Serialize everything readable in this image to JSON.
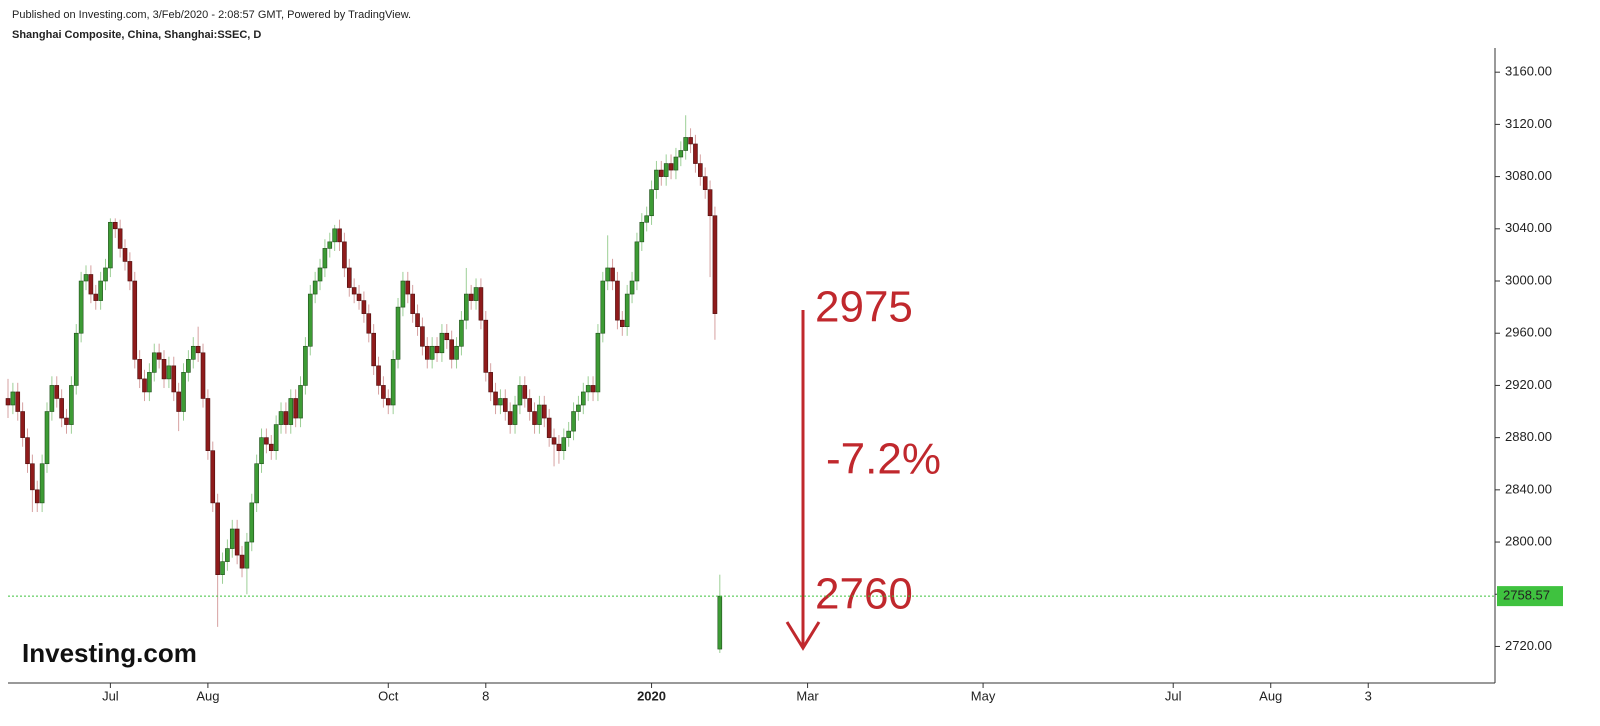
{
  "chart_data": {
    "type": "candlestick",
    "published": "Published on Investing.com, 3/Feb/2020 - 2:08:57 GMT, Powered by TradingView.",
    "title": "Shanghai Composite, China, Shanghai:SSEC, D",
    "logo": "Investing.com",
    "annotations": [
      "2975",
      "-7.2%",
      "2760"
    ],
    "up_color": "#3d9b35",
    "down_color": "#8e1b1b",
    "last_price_color": "#3fc23f",
    "xlim": [
      0,
      305
    ],
    "ylim": [
      2692,
      3177
    ],
    "xticks": [
      {
        "value": 21,
        "label": "Jul"
      },
      {
        "value": 41,
        "label": "Aug"
      },
      {
        "value": 78,
        "label": "Oct"
      },
      {
        "value": 98,
        "label": "8"
      },
      {
        "value": 132,
        "label": "2020"
      },
      {
        "value": 164,
        "label": "Mar"
      },
      {
        "value": 200,
        "label": "May"
      },
      {
        "value": 239,
        "label": "Jul"
      },
      {
        "value": 259,
        "label": "Aug"
      },
      {
        "value": 279,
        "label": "3"
      }
    ],
    "yticks": [
      {
        "value": 2720,
        "label": "2720.00"
      },
      {
        "value": 2760,
        "label": "2760.00"
      },
      {
        "value": 2800,
        "label": "2800.00"
      },
      {
        "value": 2840,
        "label": "2840.00"
      },
      {
        "value": 2880,
        "label": "2880.00"
      },
      {
        "value": 2920,
        "label": "2920.00"
      },
      {
        "value": 2960,
        "label": "2960.00"
      },
      {
        "value": 3000,
        "label": "3000.00"
      },
      {
        "value": 3040,
        "label": "3040.00"
      },
      {
        "value": 3080,
        "label": "3080.00"
      },
      {
        "value": 3120,
        "label": "3120.00"
      },
      {
        "value": 3160,
        "label": "3160.00"
      }
    ],
    "series": [
      {
        "name": "SSEC",
        "x": [
          0,
          1,
          2,
          3,
          4,
          5,
          6,
          7,
          8,
          9,
          10,
          11,
          12,
          13,
          14,
          15,
          16,
          17,
          18,
          19,
          20,
          21,
          22,
          23,
          24,
          25,
          26,
          27,
          28,
          29,
          30,
          31,
          32,
          33,
          34,
          35,
          36,
          37,
          38,
          39,
          40,
          41,
          42,
          43,
          44,
          45,
          46,
          47,
          48,
          49,
          50,
          51,
          52,
          53,
          54,
          55,
          56,
          57,
          58,
          59,
          60,
          61,
          62,
          63,
          64,
          65,
          66,
          67,
          68,
          69,
          70,
          71,
          72,
          73,
          74,
          75,
          76,
          77,
          78,
          79,
          80,
          81,
          82,
          83,
          84,
          85,
          86,
          87,
          88,
          89,
          90,
          91,
          92,
          93,
          94,
          95,
          96,
          97,
          98,
          99,
          100,
          101,
          102,
          103,
          104,
          105,
          106,
          107,
          108,
          109,
          110,
          111,
          112,
          113,
          114,
          115,
          116,
          117,
          118,
          119,
          120,
          121,
          122,
          123,
          124,
          125,
          126,
          127,
          128,
          129,
          130,
          131,
          132,
          133,
          134,
          135,
          136,
          137,
          138,
          139,
          140,
          141,
          142,
          143,
          144,
          145,
          146
        ],
        "ohlc": [
          [
            2910,
            2925,
            2895,
            2905
          ],
          [
            2905,
            2922,
            2898,
            2915
          ],
          [
            2915,
            2922,
            2893,
            2900
          ],
          [
            2900,
            2907,
            2873,
            2880
          ],
          [
            2880,
            2887,
            2853,
            2860
          ],
          [
            2860,
            2867,
            2823,
            2840
          ],
          [
            2840,
            2847,
            2823,
            2830
          ],
          [
            2830,
            2867,
            2823,
            2860
          ],
          [
            2860,
            2907,
            2853,
            2900
          ],
          [
            2900,
            2927,
            2893,
            2920
          ],
          [
            2920,
            2927,
            2903,
            2910
          ],
          [
            2910,
            2917,
            2888,
            2895
          ],
          [
            2895,
            2902,
            2883,
            2890
          ],
          [
            2890,
            2927,
            2883,
            2920
          ],
          [
            2920,
            2967,
            2913,
            2960
          ],
          [
            2960,
            3007,
            2953,
            3000
          ],
          [
            3000,
            3012,
            2993,
            3005
          ],
          [
            3005,
            3012,
            2983,
            2990
          ],
          [
            2990,
            2997,
            2978,
            2985
          ],
          [
            2985,
            3007,
            2978,
            3000
          ],
          [
            3000,
            3017,
            2993,
            3010
          ],
          [
            3010,
            3048,
            3003,
            3045
          ],
          [
            3045,
            3048,
            3033,
            3040
          ],
          [
            3040,
            3047,
            3018,
            3025
          ],
          [
            3025,
            3032,
            3008,
            3015
          ],
          [
            3015,
            3022,
            2993,
            3000
          ],
          [
            3000,
            3007,
            2933,
            2940
          ],
          [
            2940,
            2947,
            2918,
            2925
          ],
          [
            2925,
            2932,
            2908,
            2915
          ],
          [
            2915,
            2937,
            2908,
            2930
          ],
          [
            2930,
            2952,
            2923,
            2945
          ],
          [
            2945,
            2952,
            2933,
            2940
          ],
          [
            2940,
            2947,
            2918,
            2925
          ],
          [
            2925,
            2942,
            2918,
            2935
          ],
          [
            2935,
            2942,
            2908,
            2915
          ],
          [
            2915,
            2922,
            2885,
            2900
          ],
          [
            2900,
            2937,
            2893,
            2930
          ],
          [
            2930,
            2947,
            2923,
            2940
          ],
          [
            2940,
            2957,
            2933,
            2950
          ],
          [
            2950,
            2965,
            2938,
            2945
          ],
          [
            2945,
            2952,
            2903,
            2910
          ],
          [
            2910,
            2917,
            2863,
            2870
          ],
          [
            2870,
            2877,
            2823,
            2830
          ],
          [
            2830,
            2837,
            2735,
            2775
          ],
          [
            2775,
            2792,
            2768,
            2785
          ],
          [
            2785,
            2802,
            2778,
            2795
          ],
          [
            2795,
            2817,
            2788,
            2810
          ],
          [
            2810,
            2817,
            2783,
            2790
          ],
          [
            2790,
            2797,
            2773,
            2780
          ],
          [
            2780,
            2807,
            2760,
            2800
          ],
          [
            2800,
            2837,
            2793,
            2830
          ],
          [
            2830,
            2867,
            2823,
            2860
          ],
          [
            2860,
            2887,
            2853,
            2880
          ],
          [
            2880,
            2887,
            2868,
            2875
          ],
          [
            2875,
            2882,
            2863,
            2870
          ],
          [
            2870,
            2897,
            2863,
            2890
          ],
          [
            2890,
            2907,
            2883,
            2900
          ],
          [
            2900,
            2907,
            2883,
            2890
          ],
          [
            2890,
            2917,
            2883,
            2910
          ],
          [
            2910,
            2917,
            2888,
            2895
          ],
          [
            2895,
            2927,
            2888,
            2920
          ],
          [
            2920,
            2957,
            2913,
            2950
          ],
          [
            2950,
            2997,
            2943,
            2990
          ],
          [
            2990,
            3007,
            2983,
            3000
          ],
          [
            3000,
            3017,
            2993,
            3010
          ],
          [
            3010,
            3032,
            3003,
            3025
          ],
          [
            3025,
            3037,
            3018,
            3030
          ],
          [
            3030,
            3043,
            3023,
            3040
          ],
          [
            3040,
            3047,
            3023,
            3030
          ],
          [
            3030,
            3037,
            3003,
            3010
          ],
          [
            3010,
            3017,
            2988,
            2995
          ],
          [
            2995,
            3002,
            2983,
            2990
          ],
          [
            2990,
            2997,
            2978,
            2985
          ],
          [
            2985,
            2992,
            2968,
            2975
          ],
          [
            2975,
            2982,
            2953,
            2960
          ],
          [
            2960,
            2967,
            2928,
            2935
          ],
          [
            2935,
            2942,
            2913,
            2920
          ],
          [
            2920,
            2927,
            2903,
            2910
          ],
          [
            2910,
            2917,
            2898,
            2905
          ],
          [
            2905,
            2947,
            2898,
            2940
          ],
          [
            2940,
            2987,
            2933,
            2980
          ],
          [
            2980,
            3007,
            2973,
            3000
          ],
          [
            3000,
            3007,
            2983,
            2990
          ],
          [
            2990,
            2997,
            2968,
            2975
          ],
          [
            2975,
            2982,
            2958,
            2965
          ],
          [
            2965,
            2972,
            2943,
            2950
          ],
          [
            2950,
            2957,
            2933,
            2940
          ],
          [
            2940,
            2957,
            2933,
            2950
          ],
          [
            2950,
            2957,
            2938,
            2945
          ],
          [
            2945,
            2967,
            2938,
            2960
          ],
          [
            2960,
            2967,
            2948,
            2955
          ],
          [
            2955,
            2962,
            2933,
            2940
          ],
          [
            2940,
            2957,
            2933,
            2950
          ],
          [
            2950,
            2977,
            2943,
            2970
          ],
          [
            2970,
            3010,
            2963,
            2990
          ],
          [
            2990,
            2997,
            2978,
            2985
          ],
          [
            2985,
            3002,
            2978,
            2995
          ],
          [
            2995,
            3002,
            2963,
            2970
          ],
          [
            2970,
            2977,
            2923,
            2930
          ],
          [
            2930,
            2937,
            2908,
            2915
          ],
          [
            2915,
            2922,
            2898,
            2905
          ],
          [
            2905,
            2917,
            2898,
            2910
          ],
          [
            2910,
            2917,
            2893,
            2900
          ],
          [
            2900,
            2907,
            2883,
            2890
          ],
          [
            2890,
            2912,
            2883,
            2905
          ],
          [
            2905,
            2927,
            2898,
            2920
          ],
          [
            2920,
            2927,
            2903,
            2910
          ],
          [
            2910,
            2917,
            2893,
            2900
          ],
          [
            2900,
            2907,
            2883,
            2890
          ],
          [
            2890,
            2912,
            2883,
            2905
          ],
          [
            2905,
            2912,
            2888,
            2895
          ],
          [
            2895,
            2902,
            2873,
            2880
          ],
          [
            2880,
            2887,
            2858,
            2875
          ],
          [
            2875,
            2882,
            2860,
            2870
          ],
          [
            2870,
            2887,
            2863,
            2880
          ],
          [
            2880,
            2892,
            2873,
            2885
          ],
          [
            2885,
            2907,
            2878,
            2900
          ],
          [
            2900,
            2912,
            2893,
            2905
          ],
          [
            2905,
            2922,
            2898,
            2915
          ],
          [
            2915,
            2927,
            2908,
            2920
          ],
          [
            2920,
            2927,
            2908,
            2915
          ],
          [
            2915,
            2967,
            2908,
            2960
          ],
          [
            2960,
            3007,
            2953,
            3000
          ],
          [
            3000,
            3035,
            2993,
            3010
          ],
          [
            3010,
            3017,
            2993,
            3000
          ],
          [
            3000,
            3007,
            2963,
            2970
          ],
          [
            2970,
            2977,
            2958,
            2965
          ],
          [
            2965,
            2997,
            2958,
            2990
          ],
          [
            2990,
            3007,
            2983,
            3000
          ],
          [
            3000,
            3037,
            2993,
            3030
          ],
          [
            3030,
            3052,
            3023,
            3045
          ],
          [
            3045,
            3057,
            3038,
            3050
          ],
          [
            3050,
            3077,
            3043,
            3070
          ],
          [
            3070,
            3092,
            3063,
            3085
          ],
          [
            3085,
            3092,
            3073,
            3080
          ],
          [
            3080,
            3097,
            3073,
            3090
          ],
          [
            3090,
            3097,
            3078,
            3085
          ],
          [
            3085,
            3102,
            3078,
            3095
          ],
          [
            3095,
            3107,
            3088,
            3100
          ],
          [
            3100,
            3127,
            3093,
            3110
          ],
          [
            3110,
            3117,
            3098,
            3105
          ],
          [
            3105,
            3112,
            3083,
            3090
          ],
          [
            3090,
            3097,
            3073,
            3080
          ],
          [
            3080,
            3087,
            3063,
            3070
          ],
          [
            3070,
            3077,
            3003,
            3050
          ],
          [
            3050,
            3057,
            2955,
            2975
          ],
          [
            2718,
            2775,
            2715,
            2758.57
          ]
        ]
      }
    ]
  }
}
